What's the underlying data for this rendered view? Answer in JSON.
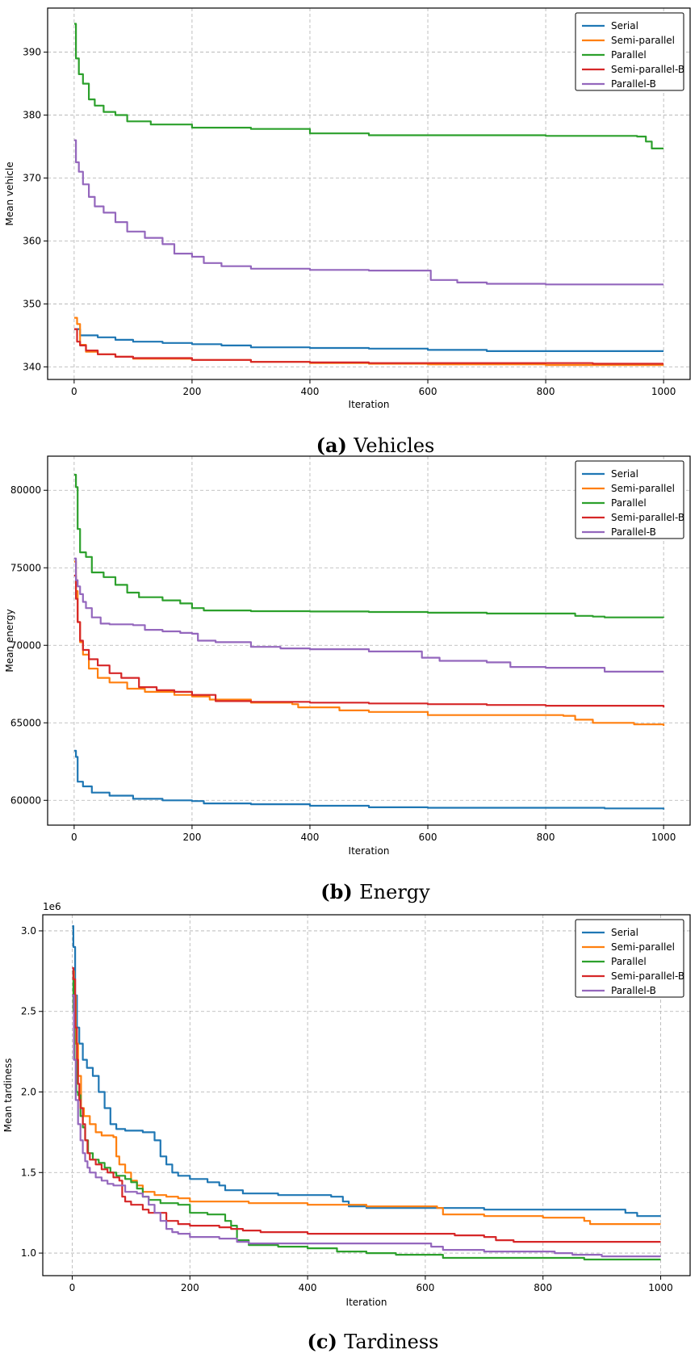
{
  "chart_data": [
    {
      "type": "line",
      "caption_letter": "(a)",
      "caption_text": "Vehicles",
      "xlabel": "Iteration",
      "ylabel": "Mean vehicle",
      "xlim": [
        -45,
        1045
      ],
      "ylim": [
        338,
        397
      ],
      "xticks": [
        0,
        200,
        400,
        600,
        800,
        1000
      ],
      "yticks": [
        340,
        350,
        360,
        370,
        380,
        390
      ],
      "ytick_labels": [
        "340",
        "350",
        "360",
        "370",
        "380",
        "390"
      ],
      "offset_label": "",
      "grid": true,
      "legend_position": "top-right",
      "series": [
        {
          "name": "Serial",
          "color": "#1f77b4",
          "x": [
            0,
            10,
            40,
            70,
            100,
            150,
            200,
            250,
            300,
            400,
            500,
            600,
            700,
            800,
            900,
            1000
          ],
          "y": [
            346,
            345,
            344.7,
            344.3,
            344,
            343.8,
            343.6,
            343.4,
            343.1,
            343,
            342.9,
            342.7,
            342.5,
            342.5,
            342.5,
            342.5
          ]
        },
        {
          "name": "Semi-parallel",
          "color": "#ff7f0e",
          "x": [
            0,
            5,
            10,
            20,
            40,
            70,
            100,
            200,
            300,
            400,
            500,
            600,
            700,
            800,
            900,
            1000
          ],
          "y": [
            347.8,
            346.8,
            343.5,
            342.4,
            342,
            341.6,
            341.3,
            341.1,
            340.8,
            340.6,
            340.5,
            340.4,
            340.4,
            340.3,
            340.3,
            340.3
          ]
        },
        {
          "name": "Parallel",
          "color": "#2ca02c",
          "x": [
            0,
            3,
            8,
            15,
            25,
            35,
            50,
            70,
            90,
            130,
            200,
            300,
            400,
            500,
            600,
            700,
            800,
            955,
            970,
            980,
            1000
          ],
          "y": [
            394.5,
            389,
            386.5,
            385,
            382.5,
            381.5,
            380.5,
            380,
            379,
            378.5,
            378,
            377.8,
            377.1,
            376.8,
            376.8,
            376.8,
            376.7,
            376.6,
            375.8,
            374.7,
            374.7
          ]
        },
        {
          "name": "Semi-parallel-B",
          "color": "#d62728",
          "x": [
            0,
            5,
            10,
            20,
            40,
            70,
            100,
            200,
            300,
            400,
            500,
            600,
            700,
            800,
            880,
            1000
          ],
          "y": [
            346,
            344,
            343.4,
            342.6,
            342,
            341.6,
            341.4,
            341.1,
            340.8,
            340.7,
            340.6,
            340.6,
            340.6,
            340.6,
            340.5,
            340.5
          ]
        },
        {
          "name": "Parallel-B",
          "color": "#9467bd",
          "x": [
            0,
            3,
            8,
            15,
            25,
            35,
            50,
            70,
            90,
            120,
            150,
            170,
            200,
            220,
            250,
            300,
            400,
            500,
            600,
            605,
            650,
            700,
            800,
            900,
            1000
          ],
          "y": [
            376,
            372.5,
            371,
            369,
            367,
            365.5,
            364.5,
            363,
            361.5,
            360.5,
            359.5,
            358,
            357.5,
            356.5,
            356,
            355.6,
            355.4,
            355.3,
            355.3,
            353.8,
            353.4,
            353.2,
            353.1,
            353.1,
            353.1
          ]
        }
      ]
    },
    {
      "type": "line",
      "caption_letter": "(b)",
      "caption_text": "Energy",
      "xlabel": "Iteration",
      "ylabel": "Mean energy",
      "xlim": [
        -45,
        1045
      ],
      "ylim": [
        58400,
        82200
      ],
      "xticks": [
        0,
        200,
        400,
        600,
        800,
        1000
      ],
      "yticks": [
        60000,
        65000,
        70000,
        75000,
        80000
      ],
      "ytick_labels": [
        "60000",
        "65000",
        "70000",
        "75000",
        "80000"
      ],
      "offset_label": "",
      "grid": true,
      "legend_position": "top-right",
      "series": [
        {
          "name": "Serial",
          "color": "#1f77b4",
          "x": [
            0,
            3,
            6,
            15,
            30,
            60,
            100,
            150,
            200,
            220,
            300,
            400,
            500,
            600,
            700,
            800,
            900,
            1000
          ],
          "y": [
            63200,
            62800,
            61200,
            60900,
            60500,
            60300,
            60100,
            60000,
            59950,
            59800,
            59750,
            59650,
            59550,
            59520,
            59520,
            59520,
            59480,
            59400
          ]
        },
        {
          "name": "Semi-parallel",
          "color": "#ff7f0e",
          "x": [
            0,
            3,
            6,
            10,
            15,
            25,
            40,
            60,
            90,
            120,
            170,
            200,
            230,
            300,
            370,
            380,
            450,
            500,
            600,
            700,
            830,
            850,
            880,
            950,
            1000
          ],
          "y": [
            75400,
            73500,
            71500,
            70200,
            69400,
            68500,
            67900,
            67600,
            67200,
            67000,
            66800,
            66700,
            66500,
            66300,
            66200,
            66000,
            65800,
            65700,
            65500,
            65500,
            65450,
            65200,
            65000,
            64900,
            64800
          ]
        },
        {
          "name": "Semi-parallel-B",
          "color": "#d62728",
          "x": [
            0,
            3,
            6,
            10,
            15,
            25,
            40,
            60,
            80,
            110,
            140,
            170,
            200,
            240,
            300,
            400,
            500,
            600,
            700,
            800,
            900,
            1000
          ],
          "y": [
            74500,
            73000,
            71500,
            70300,
            69700,
            69100,
            68700,
            68200,
            67900,
            67300,
            67100,
            67000,
            66800,
            66400,
            66350,
            66300,
            66250,
            66200,
            66150,
            66100,
            66100,
            66000
          ]
        },
        {
          "name": "Parallel-B",
          "color": "#9467bd",
          "x": [
            0,
            3,
            6,
            10,
            15,
            20,
            30,
            45,
            60,
            100,
            120,
            150,
            180,
            200,
            210,
            240,
            300,
            350,
            400,
            500,
            590,
            620,
            700,
            740,
            800,
            880,
            900,
            1000
          ],
          "y": [
            75600,
            74200,
            73800,
            73300,
            72800,
            72400,
            71800,
            71400,
            71350,
            71300,
            71000,
            70900,
            70800,
            70750,
            70300,
            70200,
            69900,
            69800,
            69750,
            69600,
            69200,
            69000,
            68900,
            68600,
            68550,
            68550,
            68300,
            68300
          ]
        },
        {
          "name": "Parallel",
          "color": "#2ca02c",
          "x": [
            0,
            3,
            6,
            10,
            20,
            30,
            50,
            70,
            90,
            110,
            150,
            180,
            200,
            220,
            300,
            400,
            500,
            600,
            700,
            800,
            850,
            880,
            900,
            1000
          ],
          "y": [
            81000,
            80200,
            77500,
            76000,
            75700,
            74700,
            74400,
            73900,
            73400,
            73100,
            72900,
            72700,
            72400,
            72250,
            72200,
            72180,
            72150,
            72100,
            72050,
            72050,
            71900,
            71850,
            71800,
            71780
          ]
        }
      ]
    },
    {
      "type": "line",
      "caption_letter": "(c)",
      "caption_text": "Tardiness",
      "xlabel": "Iteration",
      "ylabel": "Mean tardiness",
      "xlim": [
        -50,
        1050
      ],
      "ylim": [
        0.86,
        3.1
      ],
      "xticks": [
        0,
        200,
        400,
        600,
        800,
        1000
      ],
      "yticks": [
        1.0,
        1.5,
        2.0,
        2.5,
        3.0
      ],
      "ytick_labels": [
        "1.0",
        "1.5",
        "2.0",
        "2.5",
        "3.0"
      ],
      "offset_label": "1e6",
      "grid": true,
      "legend_position": "top-right",
      "series": [
        {
          "name": "Serial",
          "color": "#1f77b4",
          "x": [
            0,
            2,
            5,
            8,
            12,
            18,
            25,
            35,
            45,
            55,
            65,
            75,
            90,
            120,
            140,
            150,
            160,
            170,
            180,
            200,
            230,
            250,
            260,
            290,
            320,
            350,
            400,
            440,
            460,
            470,
            500,
            550,
            600,
            700,
            800,
            900,
            940,
            960,
            1000
          ],
          "y": [
            3.03,
            2.9,
            2.6,
            2.4,
            2.3,
            2.2,
            2.15,
            2.1,
            2.0,
            1.9,
            1.8,
            1.77,
            1.76,
            1.75,
            1.7,
            1.6,
            1.55,
            1.5,
            1.48,
            1.46,
            1.44,
            1.42,
            1.39,
            1.37,
            1.37,
            1.36,
            1.36,
            1.35,
            1.32,
            1.29,
            1.28,
            1.28,
            1.28,
            1.27,
            1.27,
            1.27,
            1.25,
            1.23,
            1.23
          ]
        },
        {
          "name": "Semi-parallel",
          "color": "#ff7f0e",
          "x": [
            0,
            3,
            6,
            10,
            15,
            20,
            30,
            40,
            50,
            70,
            75,
            80,
            90,
            100,
            110,
            120,
            140,
            160,
            180,
            200,
            260,
            300,
            400,
            500,
            600,
            620,
            630,
            700,
            800,
            860,
            870,
            880,
            1000
          ],
          "y": [
            2.75,
            2.6,
            2.3,
            2.1,
            1.9,
            1.85,
            1.8,
            1.75,
            1.73,
            1.72,
            1.6,
            1.55,
            1.5,
            1.45,
            1.42,
            1.38,
            1.36,
            1.35,
            1.34,
            1.32,
            1.32,
            1.31,
            1.3,
            1.29,
            1.29,
            1.28,
            1.24,
            1.23,
            1.22,
            1.22,
            1.2,
            1.18,
            1.18
          ]
        },
        {
          "name": "Parallel",
          "color": "#2ca02c",
          "x": [
            0,
            2,
            4,
            7,
            10,
            14,
            18,
            22,
            27,
            35,
            45,
            55,
            65,
            75,
            90,
            100,
            110,
            120,
            130,
            150,
            180,
            200,
            230,
            260,
            270,
            280,
            300,
            350,
            400,
            450,
            500,
            550,
            600,
            630,
            700,
            800,
            860,
            870,
            1000
          ],
          "y": [
            2.75,
            2.5,
            2.2,
            2.0,
            1.98,
            1.85,
            1.78,
            1.7,
            1.62,
            1.58,
            1.56,
            1.53,
            1.5,
            1.48,
            1.46,
            1.44,
            1.4,
            1.35,
            1.33,
            1.31,
            1.3,
            1.25,
            1.24,
            1.2,
            1.17,
            1.08,
            1.05,
            1.04,
            1.03,
            1.01,
            1.0,
            0.99,
            0.99,
            0.97,
            0.97,
            0.97,
            0.97,
            0.96,
            0.96
          ]
        },
        {
          "name": "Semi-parallel-B",
          "color": "#d62728",
          "x": [
            0,
            2,
            5,
            8,
            10,
            12,
            14,
            18,
            22,
            26,
            30,
            40,
            50,
            60,
            70,
            80,
            85,
            90,
            100,
            120,
            130,
            140,
            160,
            180,
            200,
            250,
            270,
            290,
            320,
            380,
            400,
            500,
            600,
            650,
            700,
            720,
            750,
            800,
            900,
            1000
          ],
          "y": [
            2.77,
            2.7,
            2.4,
            2.2,
            2.05,
            1.95,
            1.9,
            1.8,
            1.7,
            1.62,
            1.58,
            1.55,
            1.52,
            1.5,
            1.47,
            1.45,
            1.35,
            1.32,
            1.3,
            1.27,
            1.25,
            1.25,
            1.2,
            1.18,
            1.17,
            1.16,
            1.15,
            1.14,
            1.13,
            1.13,
            1.12,
            1.12,
            1.12,
            1.11,
            1.1,
            1.08,
            1.07,
            1.07,
            1.07,
            1.07
          ]
        },
        {
          "name": "Parallel-B",
          "color": "#9467bd",
          "x": [
            0,
            3,
            6,
            10,
            14,
            18,
            22,
            26,
            30,
            40,
            50,
            60,
            70,
            80,
            90,
            110,
            120,
            130,
            140,
            150,
            160,
            170,
            180,
            200,
            250,
            280,
            300,
            400,
            500,
            600,
            610,
            630,
            700,
            800,
            820,
            850,
            900,
            1000
          ],
          "y": [
            2.6,
            2.2,
            1.95,
            1.8,
            1.7,
            1.62,
            1.57,
            1.53,
            1.5,
            1.47,
            1.45,
            1.43,
            1.42,
            1.42,
            1.38,
            1.37,
            1.35,
            1.3,
            1.25,
            1.2,
            1.15,
            1.13,
            1.12,
            1.1,
            1.09,
            1.07,
            1.06,
            1.06,
            1.06,
            1.06,
            1.04,
            1.02,
            1.01,
            1.01,
            1.0,
            0.99,
            0.98,
            0.98
          ]
        }
      ]
    }
  ]
}
